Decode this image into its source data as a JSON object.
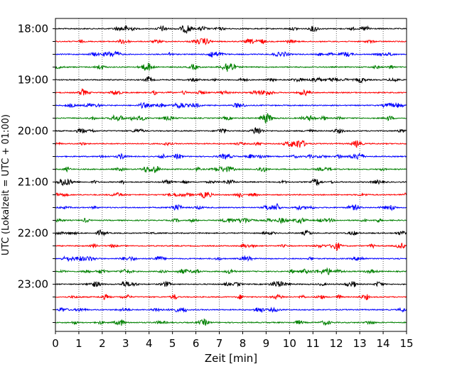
{
  "chart_data": {
    "type": "line",
    "title": "",
    "xlabel": "Zeit  [min]",
    "ylabel": "UTC (Lokalzeit = UTC + 01:00)",
    "xlim": [
      0,
      15
    ],
    "x_ticks": [
      "0",
      "1",
      "2",
      "3",
      "4",
      "5",
      "6",
      "7",
      "8",
      "9",
      "10",
      "11",
      "12",
      "13",
      "14",
      "15"
    ],
    "y_tick_labels": [
      "18:00",
      "19:00",
      "20:00",
      "21:00",
      "22:00",
      "23:00"
    ],
    "grid": "vertical dotted lines at each minute",
    "trace_start_time": "18:00",
    "trace_interval_minutes": 15,
    "trace_count": 24,
    "trace_colors": [
      "#000000",
      "#ff0000",
      "#0000ff",
      "#008000"
    ],
    "series_description": "helicorder: 24 seismogram traces of 15 min each, cycling black, red, blue, green"
  }
}
